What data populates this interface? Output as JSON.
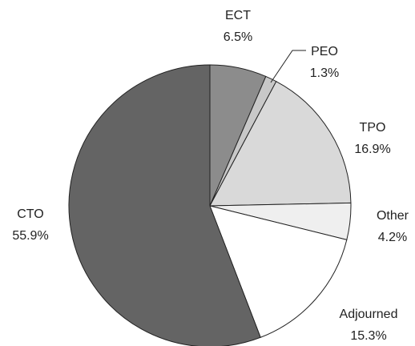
{
  "chart_data": {
    "type": "pie",
    "categories": [
      "ECT",
      "PEO",
      "TPO",
      "Other",
      "Adjourned",
      "CTO"
    ],
    "values": [
      6.5,
      1.3,
      16.9,
      4.2,
      15.3,
      55.9
    ],
    "value_labels": [
      "6.5%",
      "1.3%",
      "16.9%",
      "4.2%",
      "15.3%",
      "55.9%"
    ],
    "colors": [
      "#8c8c8c",
      "#c8c8c8",
      "#d9d9d9",
      "#efefef",
      "#ffffff",
      "#646464"
    ]
  }
}
